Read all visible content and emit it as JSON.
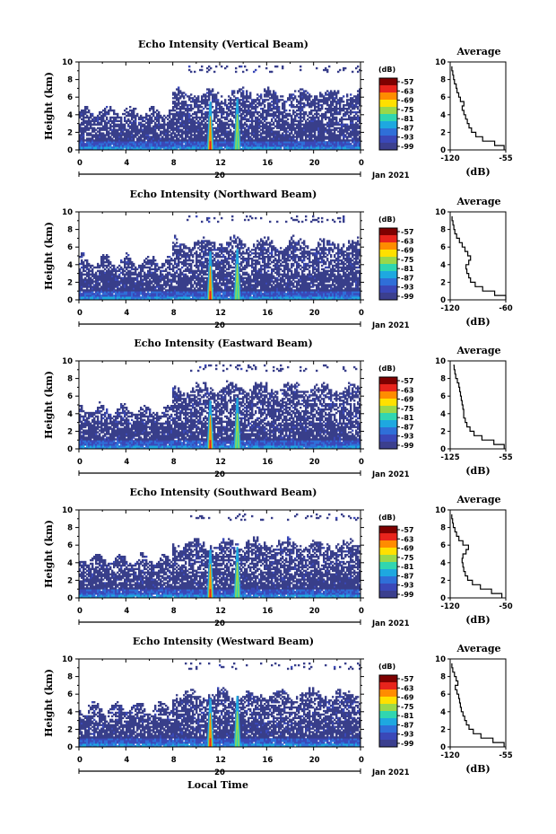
{
  "chart_data": [
    {
      "type": "heatmap",
      "title": "Echo Intensity (Vertical Beam)",
      "ylabel": "Height (km)",
      "xlim": [
        0,
        24
      ],
      "ylim": [
        0,
        10
      ],
      "xticks": [
        "0",
        "4",
        "8",
        "12",
        "16",
        "20",
        "0"
      ],
      "yticks": [
        "0",
        "2",
        "4",
        "6",
        "8",
        "10"
      ],
      "date_label": "20",
      "month_label": "Jan 2021",
      "colorbar": {
        "unit": "(dB)",
        "ticks": [
          "-57",
          "-63",
          "-69",
          "-75",
          "-81",
          "-87",
          "-93",
          "-99"
        ]
      },
      "top_km": 6.5,
      "spikes_hr": [
        11.2,
        13.5
      ],
      "average": {
        "title": "Average",
        "xlabel": "(dB)",
        "xticks": [
          "-120",
          "-55"
        ],
        "xlim": [
          -120,
          -55
        ],
        "ylim": [
          0,
          10
        ],
        "profile_h": [
          0,
          0.5,
          1,
          1.5,
          2,
          2.5,
          3,
          3.5,
          4,
          4.5,
          5,
          5.5,
          6,
          6.5,
          7,
          7.5,
          8,
          8.5,
          9,
          9.5
        ],
        "profile_db": [
          -57,
          -68,
          -82,
          -90,
          -95,
          -98,
          -100,
          -102,
          -104,
          -106,
          -104,
          -108,
          -110,
          -112,
          -113,
          -115,
          -116,
          -117,
          -118,
          -118
        ]
      }
    },
    {
      "type": "heatmap",
      "title": "Echo Intensity (Northward Beam)",
      "ylabel": "Height (km)",
      "xlim": [
        0,
        24
      ],
      "ylim": [
        0,
        10
      ],
      "xticks": [
        "0",
        "4",
        "8",
        "12",
        "16",
        "20",
        "0"
      ],
      "yticks": [
        "0",
        "2",
        "4",
        "6",
        "8",
        "10"
      ],
      "date_label": "20",
      "month_label": "Jan 2021",
      "colorbar": {
        "unit": "(dB)",
        "ticks": [
          "-57",
          "-63",
          "-69",
          "-75",
          "-81",
          "-87",
          "-93",
          "-99"
        ]
      },
      "top_km": 6.5,
      "spikes_hr": [
        11.2,
        13.5
      ],
      "average": {
        "title": "Average",
        "xlabel": "(dB)",
        "xticks": [
          "-120",
          "-60"
        ],
        "xlim": [
          -120,
          -60
        ],
        "ylim": [
          0,
          10
        ],
        "profile_h": [
          0,
          0.5,
          1,
          1.5,
          2,
          2.5,
          3,
          3.5,
          4,
          4.5,
          5,
          5.5,
          6,
          6.5,
          7,
          7.5,
          8,
          8.5,
          9,
          9.5
        ],
        "profile_db": [
          -60,
          -72,
          -85,
          -93,
          -98,
          -100,
          -102,
          -103,
          -100,
          -98,
          -101,
          -104,
          -107,
          -110,
          -113,
          -115,
          -116,
          -117,
          -118,
          -118
        ]
      }
    },
    {
      "type": "heatmap",
      "title": "Echo Intensity (Eastward Beam)",
      "ylabel": "Height (km)",
      "xlim": [
        0,
        24
      ],
      "ylim": [
        0,
        10
      ],
      "xticks": [
        "0",
        "4",
        "8",
        "12",
        "16",
        "20",
        "0"
      ],
      "yticks": [
        "0",
        "2",
        "4",
        "6",
        "8",
        "10"
      ],
      "date_label": "20",
      "month_label": "Jan 2021",
      "colorbar": {
        "unit": "(dB)",
        "ticks": [
          "-57",
          "-63",
          "-69",
          "-75",
          "-81",
          "-87",
          "-93",
          "-99"
        ]
      },
      "top_km": 7.0,
      "spikes_hr": [
        11.2,
        13.5
      ],
      "average": {
        "title": "Average",
        "xlabel": "(dB)",
        "xticks": [
          "-125",
          "-55"
        ],
        "xlim": [
          -125,
          -55
        ],
        "ylim": [
          0,
          10
        ],
        "profile_h": [
          0,
          0.5,
          1,
          1.5,
          2,
          2.5,
          3,
          3.5,
          4,
          4.5,
          5,
          5.5,
          6,
          6.5,
          7,
          7.5,
          8,
          8.5,
          9,
          9.5
        ],
        "profile_db": [
          -57,
          -70,
          -85,
          -95,
          -100,
          -104,
          -106,
          -108,
          -108,
          -109,
          -110,
          -111,
          -112,
          -113,
          -114,
          -116,
          -118,
          -119,
          -120,
          -121
        ]
      }
    },
    {
      "type": "heatmap",
      "title": "Echo Intensity (Southward Beam)",
      "ylabel": "Height (km)",
      "xlim": [
        0,
        24
      ],
      "ylim": [
        0,
        10
      ],
      "xticks": [
        "0",
        "4",
        "8",
        "12",
        "16",
        "20",
        "0"
      ],
      "yticks": [
        "0",
        "2",
        "4",
        "6",
        "8",
        "10"
      ],
      "date_label": "20",
      "month_label": "Jan 2021",
      "colorbar": {
        "unit": "(dB)",
        "ticks": [
          "-57",
          "-63",
          "-69",
          "-75",
          "-81",
          "-87",
          "-93",
          "-99"
        ]
      },
      "top_km": 6.2,
      "spikes_hr": [
        11.2,
        13.5
      ],
      "average": {
        "title": "Average",
        "xlabel": "(dB)",
        "xticks": [
          "-120",
          "-50"
        ],
        "xlim": [
          -120,
          -50
        ],
        "ylim": [
          0,
          10
        ],
        "profile_h": [
          0,
          0.5,
          1,
          1.5,
          2,
          2.5,
          3,
          3.5,
          4,
          4.5,
          5,
          5.5,
          6,
          6.5,
          7,
          7.5,
          8,
          8.5,
          9,
          9.5
        ],
        "profile_db": [
          -55,
          -68,
          -82,
          -92,
          -98,
          -101,
          -103,
          -104,
          -105,
          -104,
          -100,
          -97,
          -104,
          -109,
          -112,
          -114,
          -116,
          -117,
          -118,
          -118
        ]
      }
    },
    {
      "type": "heatmap",
      "title": "Echo Intensity (Westward Beam)",
      "ylabel": "Height (km)",
      "xlabel": "Local Time",
      "xlim": [
        0,
        24
      ],
      "ylim": [
        0,
        10
      ],
      "xticks": [
        "0",
        "4",
        "8",
        "12",
        "16",
        "20",
        "0"
      ],
      "yticks": [
        "0",
        "2",
        "4",
        "6",
        "8",
        "10"
      ],
      "date_label": "20",
      "month_label": "Jan 2021",
      "colorbar": {
        "unit": "(dB)",
        "ticks": [
          "-57",
          "-63",
          "-69",
          "-75",
          "-81",
          "-87",
          "-93",
          "-99"
        ]
      },
      "top_km": 6.0,
      "spikes_hr": [
        11.2,
        13.5
      ],
      "average": {
        "title": "Average",
        "xlabel": "(dB)",
        "xticks": [
          "-120",
          "-55"
        ],
        "xlim": [
          -120,
          -55
        ],
        "ylim": [
          0,
          10
        ],
        "profile_h": [
          0,
          0.5,
          1,
          1.5,
          2,
          2.5,
          3,
          3.5,
          4,
          4.5,
          5,
          5.5,
          6,
          6.5,
          7,
          7.5,
          8,
          8.5,
          9,
          9.5
        ],
        "profile_db": [
          -57,
          -70,
          -84,
          -93,
          -98,
          -101,
          -103,
          -105,
          -107,
          -108,
          -109,
          -110,
          -112,
          -114,
          -111,
          -113,
          -115,
          -117,
          -118,
          -118
        ]
      }
    }
  ],
  "colors": {
    "scale": [
      "#7f0000",
      "#e8241c",
      "#ff8c00",
      "#ffe000",
      "#9ad84a",
      "#30d6b0",
      "#1ea8e0",
      "#2f6fd8",
      "#3a48b8",
      "#3b3f8e"
    ],
    "background_echo": "#383e8a"
  }
}
